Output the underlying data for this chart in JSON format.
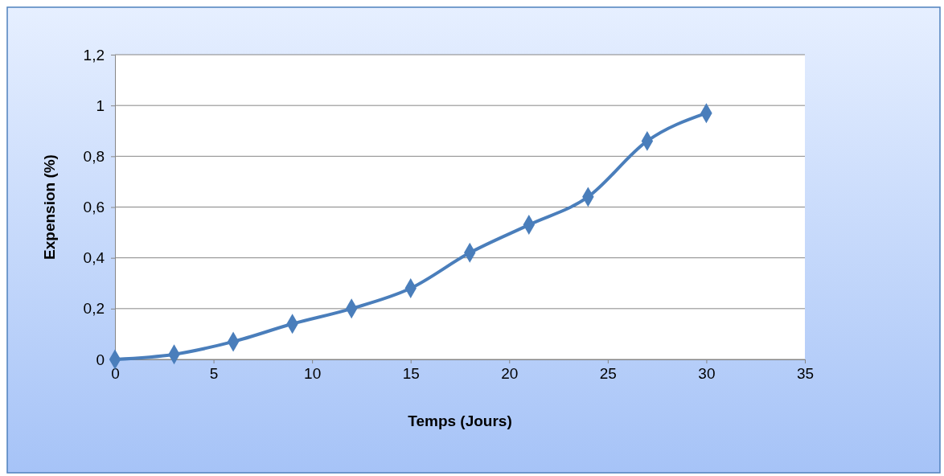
{
  "chart_data": {
    "type": "line",
    "xlabel": "Temps (Jours)",
    "ylabel": "Expension (%)",
    "x": [
      0,
      3,
      6,
      9,
      12,
      15,
      18,
      21,
      24,
      27,
      30
    ],
    "series": [
      {
        "color": "#4a7ebb",
        "values": [
          0,
          0.02,
          0.07,
          0.14,
          0.2,
          0.28,
          0.42,
          0.53,
          0.64,
          0.86,
          0.97
        ]
      }
    ],
    "xlim": [
      0,
      35
    ],
    "xticks": [
      0,
      5,
      10,
      15,
      20,
      25,
      30,
      35
    ],
    "ylim": [
      0,
      1.2
    ],
    "yticks": [
      0,
      {
        "value": 0.2,
        "label": "0,2"
      },
      {
        "value": 0.4,
        "label": "0,4"
      },
      {
        "value": 0.6,
        "label": "0,6"
      },
      {
        "value": 0.8,
        "label": "0,8"
      },
      1,
      {
        "value": 1.2,
        "label": "1,2"
      }
    ],
    "grid": "y",
    "marker": "diamond",
    "line_style": "solid"
  }
}
